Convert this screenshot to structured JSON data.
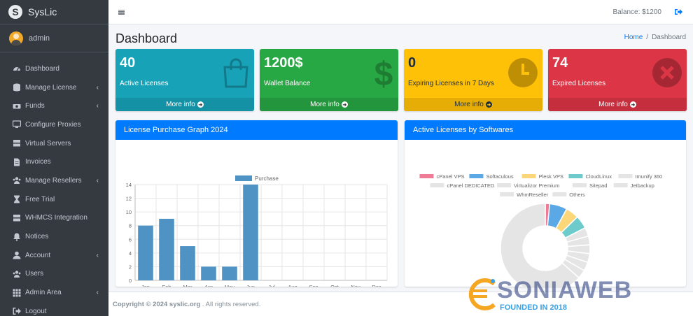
{
  "brand": {
    "name": "SysLic",
    "logo_letter": "S"
  },
  "user": {
    "name": "admin"
  },
  "sidebar": {
    "items": [
      {
        "label": "Dashboard",
        "icon": "tachometer-icon",
        "caret": false
      },
      {
        "label": "Manage License",
        "icon": "database-icon",
        "caret": true
      },
      {
        "label": "Funds",
        "icon": "money-icon",
        "caret": true
      },
      {
        "label": "Configure Proxies",
        "icon": "monitor-icon",
        "caret": false
      },
      {
        "label": "Virtual Servers",
        "icon": "server-icon",
        "caret": false
      },
      {
        "label": "Invoices",
        "icon": "file-icon",
        "caret": false
      },
      {
        "label": "Manage Resellers",
        "icon": "users-icon",
        "caret": true
      },
      {
        "label": "Free Trial",
        "icon": "hourglass-icon",
        "caret": false
      },
      {
        "label": "WHMCS Integration",
        "icon": "server-icon",
        "caret": false
      },
      {
        "label": "Notices",
        "icon": "bell-icon",
        "caret": false
      },
      {
        "label": "Account",
        "icon": "user-icon",
        "caret": true
      },
      {
        "label": "Users",
        "icon": "users-icon",
        "caret": false
      },
      {
        "label": "Admin Area",
        "icon": "grid-icon",
        "caret": true
      },
      {
        "label": "Logout",
        "icon": "sign-out-icon",
        "caret": false
      }
    ]
  },
  "topbar": {
    "balance": "Balance: $1200"
  },
  "header": {
    "title": "Dashboard",
    "breadcrumb_home": "Home",
    "breadcrumb_current": "Dashboard"
  },
  "boxes": [
    {
      "value": "40",
      "label": "Active Licenses",
      "footer": "More info",
      "icon": "shopping-bag-icon",
      "color": "#17a2b8"
    },
    {
      "value": "1200$",
      "label": "Wallet Balance",
      "footer": "More info",
      "icon": "dollar-icon",
      "color": "#28a745"
    },
    {
      "value": "0",
      "label": "Expiring Licenses in 7 Days",
      "footer": "More info",
      "icon": "clock-icon",
      "color": "#ffc107"
    },
    {
      "value": "74",
      "label": "Expired Licenses",
      "footer": "More info",
      "icon": "times-circle-icon",
      "color": "#dc3545"
    }
  ],
  "cards": {
    "left_title": "License Purchase Graph 2024",
    "right_title": "Active Licenses by Softwares"
  },
  "chart_data": [
    {
      "type": "bar",
      "categories": [
        "Jan",
        "Feb",
        "Mar",
        "Apr",
        "May",
        "Jun",
        "Jul",
        "Aug",
        "Sep",
        "Oct",
        "Nov",
        "Dec"
      ],
      "series": [
        {
          "name": "Purchase",
          "values": [
            8,
            9,
            5,
            2,
            2,
            14,
            0,
            0,
            0,
            0,
            0,
            0
          ],
          "color": "#4f93c4"
        }
      ],
      "ylim": [
        0,
        14
      ],
      "yticks": [
        "0",
        "2",
        "4",
        "6",
        "8",
        "10",
        "12",
        "14"
      ],
      "legend": "top",
      "grid": true
    },
    {
      "type": "pie",
      "categories": [
        "cPanel VPS",
        "Softaculous",
        "Plesk VPS",
        "CloudLinux",
        "Imunify 360",
        "cPanel DEDICATED",
        "Virtualizor Premium",
        "Sitepad",
        "Jetbackup",
        "WhmReseller",
        "Others"
      ],
      "values": [
        1,
        4,
        3,
        3,
        2,
        2,
        2,
        2,
        2,
        2,
        40
      ],
      "colors": [
        "#f07b96",
        "#5aa9e6",
        "#fbd77a",
        "#6dcbcb",
        "#e5e5e5",
        "#e5e5e5",
        "#e5e5e5",
        "#e5e5e5",
        "#e5e5e5",
        "#e5e5e5",
        "#e5e5e5"
      ],
      "legend": "top"
    }
  ],
  "footer": {
    "copyright": "Copyright © 2024",
    "site": "syslic.org",
    "rights": ". All rights reserved."
  },
  "watermark": {
    "text": "SONIAWEB",
    "sub": "FOUNDED IN 2018"
  }
}
